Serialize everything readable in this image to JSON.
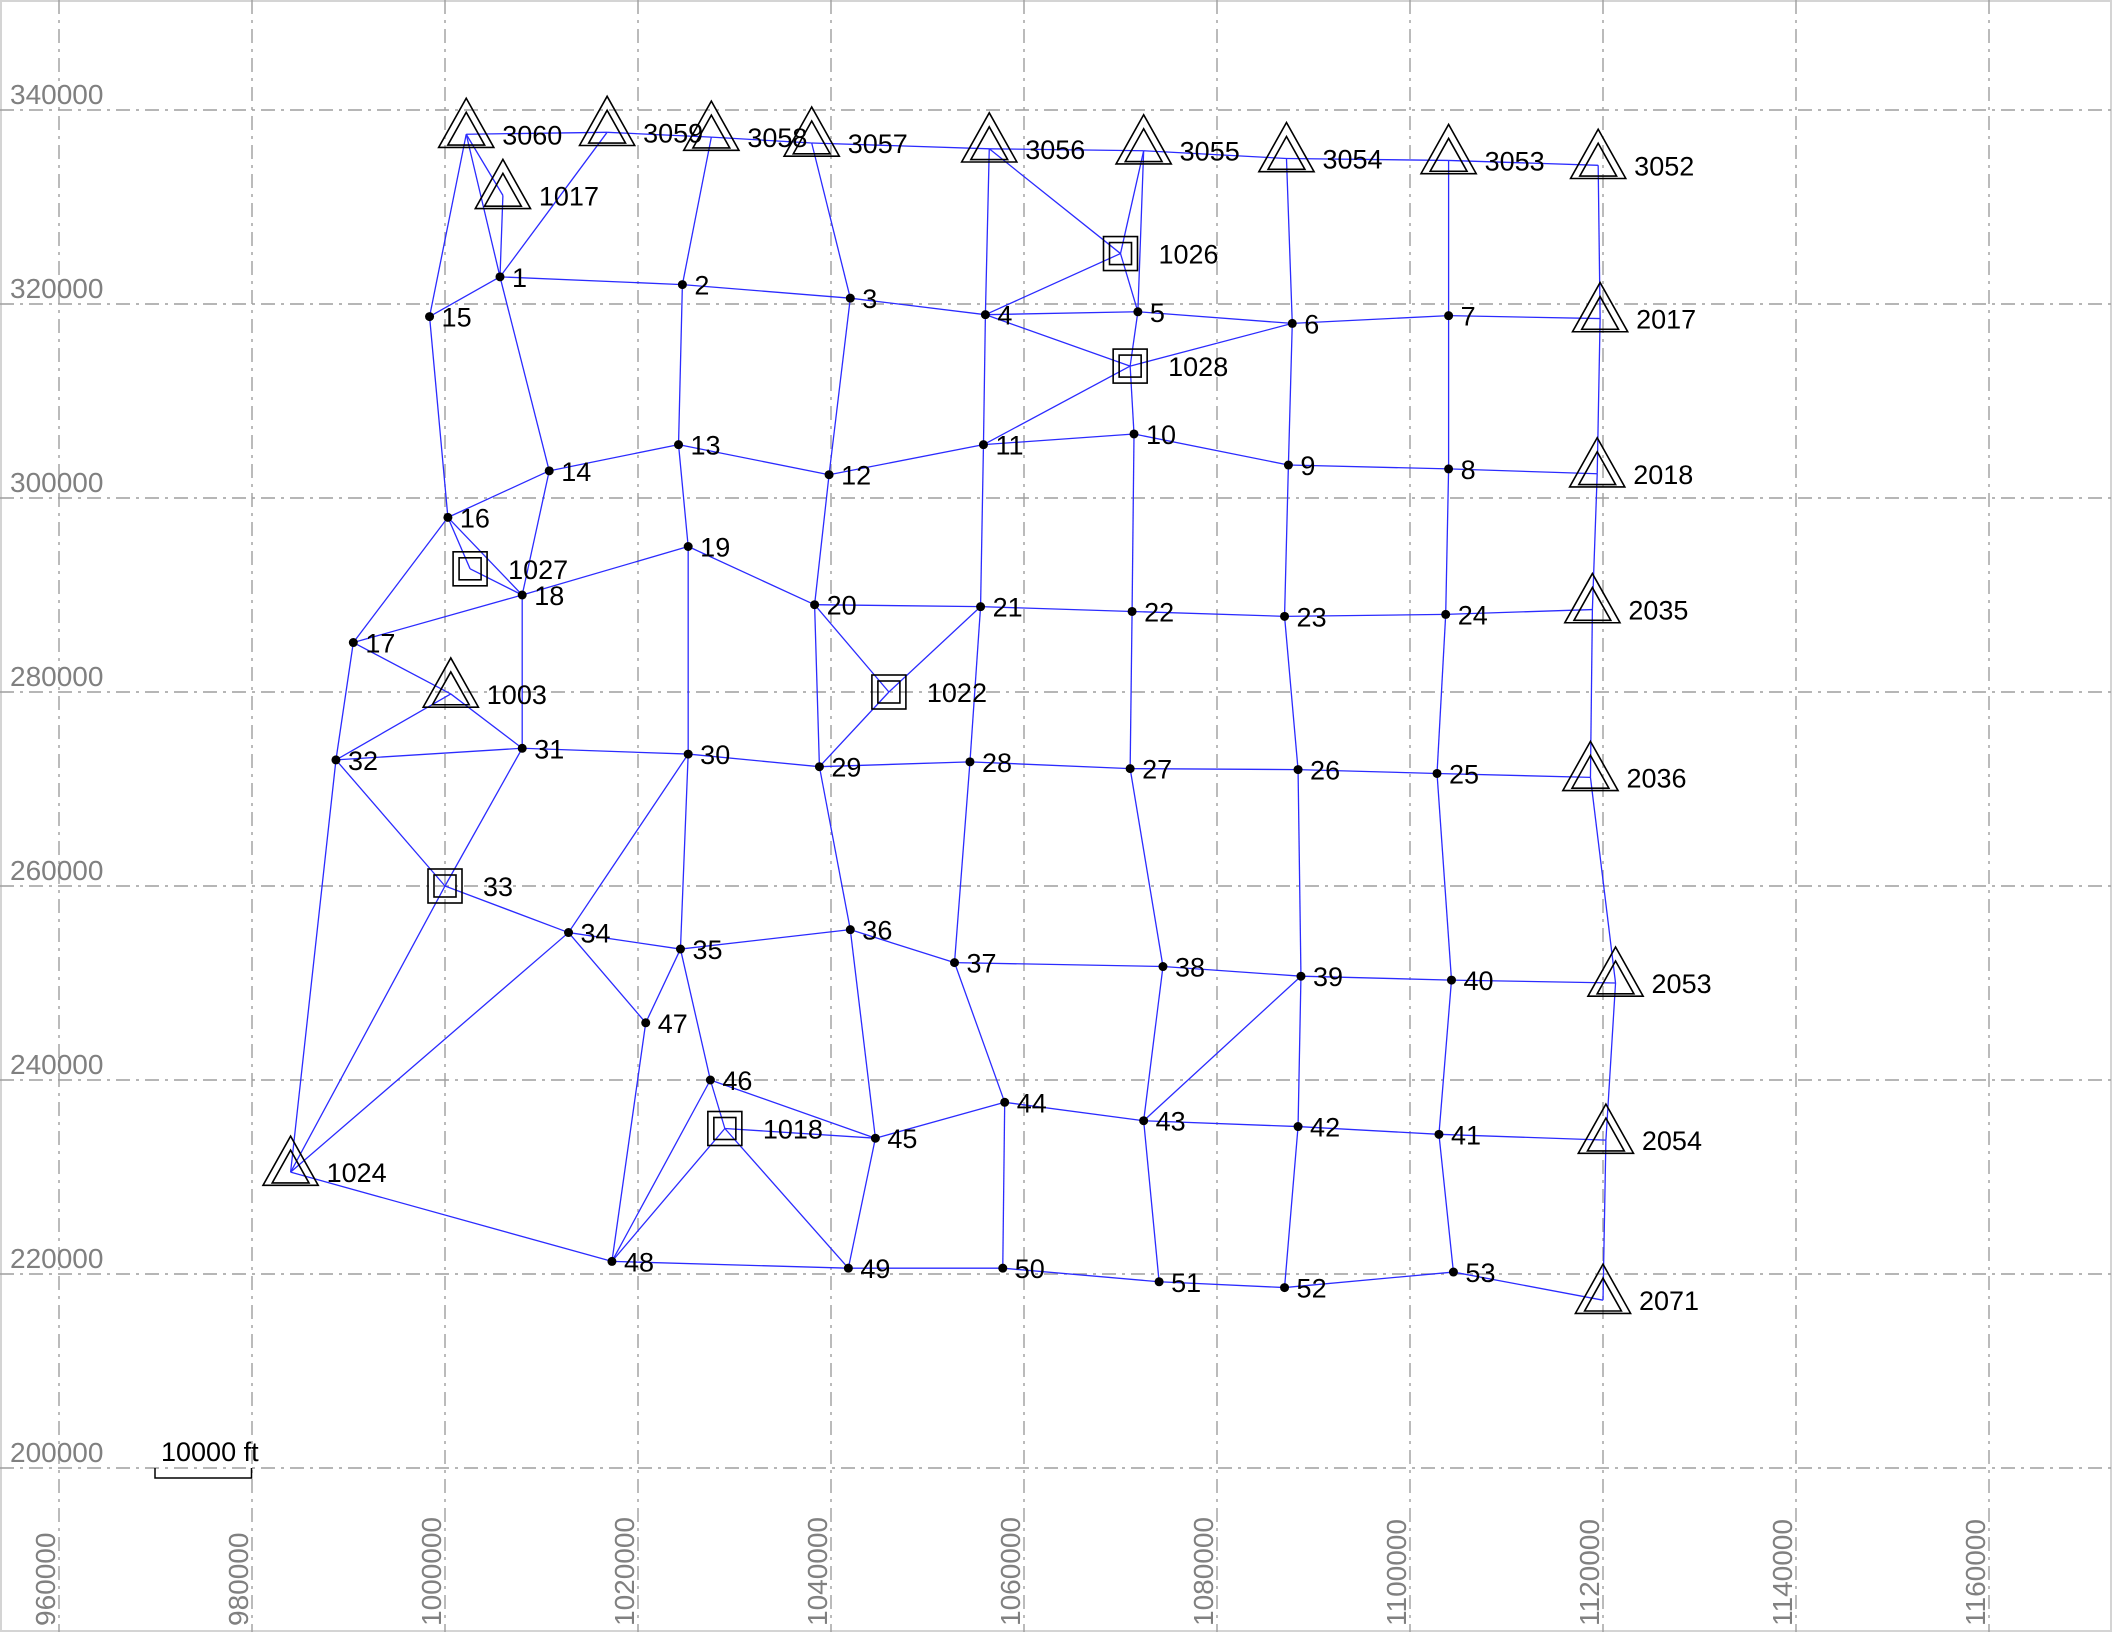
{
  "axes": {
    "x_ticks": [
      "960000",
      "980000",
      "1000000",
      "1020000",
      "1040000",
      "1060000",
      "1080000",
      "1100000",
      "1120000",
      "1140000",
      "1160000"
    ],
    "y_ticks": [
      "340000",
      "320000",
      "300000",
      "280000",
      "260000",
      "240000",
      "220000",
      "200000"
    ],
    "grid": true
  },
  "scale_bar": {
    "label": "10000 ft",
    "length_ft": 10000
  },
  "colors": {
    "edge": "#2b2bff",
    "grid": "#9e9e9e",
    "tick_label": "#808080",
    "node": "#000000"
  },
  "marker_types": {
    "control_triangle": "double-triangle-icon",
    "control_square": "double-square-icon",
    "station": "dot-icon"
  },
  "nodes": [
    {
      "id": "3060",
      "x": 1002200,
      "y": 337500,
      "type": "triangle"
    },
    {
      "id": "3059",
      "x": 1016800,
      "y": 337700,
      "type": "triangle"
    },
    {
      "id": "3058",
      "x": 1027600,
      "y": 337200,
      "type": "triangle"
    },
    {
      "id": "3057",
      "x": 1038000,
      "y": 336600,
      "type": "triangle"
    },
    {
      "id": "3056",
      "x": 1056400,
      "y": 336000,
      "type": "triangle"
    },
    {
      "id": "3055",
      "x": 1072400,
      "y": 335800,
      "type": "triangle"
    },
    {
      "id": "3054",
      "x": 1087200,
      "y": 335000,
      "type": "triangle"
    },
    {
      "id": "3053",
      "x": 1104000,
      "y": 334800,
      "type": "triangle"
    },
    {
      "id": "3052",
      "x": 1119500,
      "y": 334300,
      "type": "triangle"
    },
    {
      "id": "1017",
      "x": 1006000,
      "y": 331200,
      "type": "triangle"
    },
    {
      "id": "1026",
      "x": 1070000,
      "y": 325200,
      "type": "square"
    },
    {
      "id": "1",
      "x": 1005700,
      "y": 322800,
      "type": "dot"
    },
    {
      "id": "2",
      "x": 1024600,
      "y": 322000,
      "type": "dot"
    },
    {
      "id": "3",
      "x": 1042000,
      "y": 320600,
      "type": "dot"
    },
    {
      "id": "4",
      "x": 1056000,
      "y": 318900,
      "type": "dot"
    },
    {
      "id": "5",
      "x": 1071800,
      "y": 319200,
      "type": "dot"
    },
    {
      "id": "6",
      "x": 1087800,
      "y": 318000,
      "type": "dot"
    },
    {
      "id": "7",
      "x": 1104000,
      "y": 318800,
      "type": "dot"
    },
    {
      "id": "2017",
      "x": 1119700,
      "y": 318500,
      "type": "triangle"
    },
    {
      "id": "15",
      "x": 998400,
      "y": 318700,
      "type": "dot"
    },
    {
      "id": "1028",
      "x": 1071000,
      "y": 313600,
      "type": "square"
    },
    {
      "id": "13",
      "x": 1024200,
      "y": 305500,
      "type": "dot"
    },
    {
      "id": "11",
      "x": 1055800,
      "y": 305500,
      "type": "dot"
    },
    {
      "id": "10",
      "x": 1071400,
      "y": 306600,
      "type": "dot"
    },
    {
      "id": "14",
      "x": 1010800,
      "y": 302800,
      "type": "dot"
    },
    {
      "id": "12",
      "x": 1039800,
      "y": 302400,
      "type": "dot"
    },
    {
      "id": "9",
      "x": 1087400,
      "y": 303400,
      "type": "dot"
    },
    {
      "id": "8",
      "x": 1104000,
      "y": 303000,
      "type": "dot"
    },
    {
      "id": "2018",
      "x": 1119400,
      "y": 302500,
      "type": "triangle"
    },
    {
      "id": "16",
      "x": 1000300,
      "y": 298000,
      "type": "dot"
    },
    {
      "id": "19",
      "x": 1025200,
      "y": 295000,
      "type": "dot"
    },
    {
      "id": "1027",
      "x": 1002600,
      "y": 292700,
      "type": "square"
    },
    {
      "id": "18",
      "x": 1008000,
      "y": 290000,
      "type": "dot"
    },
    {
      "id": "20",
      "x": 1038300,
      "y": 289000,
      "type": "dot"
    },
    {
      "id": "21",
      "x": 1055500,
      "y": 288800,
      "type": "dot"
    },
    {
      "id": "22",
      "x": 1071200,
      "y": 288300,
      "type": "dot"
    },
    {
      "id": "23",
      "x": 1087000,
      "y": 287800,
      "type": "dot"
    },
    {
      "id": "24",
      "x": 1103700,
      "y": 288000,
      "type": "dot"
    },
    {
      "id": "2035",
      "x": 1118900,
      "y": 288500,
      "type": "triangle"
    },
    {
      "id": "17",
      "x": 990500,
      "y": 285100,
      "type": "dot"
    },
    {
      "id": "1003",
      "x": 1000600,
      "y": 279800,
      "type": "triangle"
    },
    {
      "id": "1022",
      "x": 1046000,
      "y": 280000,
      "type": "square"
    },
    {
      "id": "31",
      "x": 1008000,
      "y": 274200,
      "type": "dot"
    },
    {
      "id": "30",
      "x": 1025200,
      "y": 273600,
      "type": "dot"
    },
    {
      "id": "32",
      "x": 988700,
      "y": 273000,
      "type": "dot"
    },
    {
      "id": "28",
      "x": 1054400,
      "y": 272800,
      "type": "dot"
    },
    {
      "id": "29",
      "x": 1038800,
      "y": 272300,
      "type": "dot"
    },
    {
      "id": "27",
      "x": 1071000,
      "y": 272100,
      "type": "dot"
    },
    {
      "id": "26",
      "x": 1088400,
      "y": 272000,
      "type": "dot"
    },
    {
      "id": "25",
      "x": 1102800,
      "y": 271600,
      "type": "dot"
    },
    {
      "id": "2036",
      "x": 1118700,
      "y": 271200,
      "type": "triangle"
    },
    {
      "id": "33",
      "x": 1000000,
      "y": 260000,
      "type": "square"
    },
    {
      "id": "36",
      "x": 1042000,
      "y": 255500,
      "type": "dot"
    },
    {
      "id": "34",
      "x": 1012800,
      "y": 255200,
      "type": "dot"
    },
    {
      "id": "35",
      "x": 1024400,
      "y": 253500,
      "type": "dot"
    },
    {
      "id": "37",
      "x": 1052800,
      "y": 252100,
      "type": "dot"
    },
    {
      "id": "38",
      "x": 1074400,
      "y": 251700,
      "type": "dot"
    },
    {
      "id": "39",
      "x": 1088700,
      "y": 250700,
      "type": "dot"
    },
    {
      "id": "40",
      "x": 1104300,
      "y": 250300,
      "type": "dot"
    },
    {
      "id": "2053",
      "x": 1121300,
      "y": 250000,
      "type": "triangle"
    },
    {
      "id": "47",
      "x": 1020800,
      "y": 245900,
      "type": "dot"
    },
    {
      "id": "46",
      "x": 1027500,
      "y": 240000,
      "type": "dot"
    },
    {
      "id": "44",
      "x": 1058000,
      "y": 237700,
      "type": "dot"
    },
    {
      "id": "43",
      "x": 1072400,
      "y": 235800,
      "type": "dot"
    },
    {
      "id": "42",
      "x": 1088400,
      "y": 235200,
      "type": "dot"
    },
    {
      "id": "1018",
      "x": 1029000,
      "y": 235000,
      "type": "square"
    },
    {
      "id": "41",
      "x": 1103000,
      "y": 234400,
      "type": "dot"
    },
    {
      "id": "45",
      "x": 1044600,
      "y": 234000,
      "type": "dot"
    },
    {
      "id": "2054",
      "x": 1120300,
      "y": 233800,
      "type": "triangle"
    },
    {
      "id": "1024",
      "x": 984000,
      "y": 230500,
      "type": "triangle"
    },
    {
      "id": "48",
      "x": 1017300,
      "y": 221300,
      "type": "dot"
    },
    {
      "id": "49",
      "x": 1041800,
      "y": 220600,
      "type": "dot"
    },
    {
      "id": "50",
      "x": 1057800,
      "y": 220600,
      "type": "dot"
    },
    {
      "id": "53",
      "x": 1104500,
      "y": 220200,
      "type": "dot"
    },
    {
      "id": "51",
      "x": 1074000,
      "y": 219200,
      "type": "dot"
    },
    {
      "id": "52",
      "x": 1087000,
      "y": 218600,
      "type": "dot"
    },
    {
      "id": "2071",
      "x": 1120000,
      "y": 217300,
      "type": "triangle"
    }
  ],
  "edges": [
    [
      "3060",
      "3059"
    ],
    [
      "3059",
      "3058"
    ],
    [
      "3058",
      "3057"
    ],
    [
      "3057",
      "3056"
    ],
    [
      "3056",
      "3055"
    ],
    [
      "3055",
      "3054"
    ],
    [
      "3054",
      "3053"
    ],
    [
      "3053",
      "3052"
    ],
    [
      "3060",
      "1017"
    ],
    [
      "3060",
      "15"
    ],
    [
      "3060",
      "1"
    ],
    [
      "1017",
      "1"
    ],
    [
      "3059",
      "1"
    ],
    [
      "1",
      "15"
    ],
    [
      "1",
      "2"
    ],
    [
      "1",
      "14"
    ],
    [
      "3058",
      "2"
    ],
    [
      "3057",
      "3"
    ],
    [
      "2",
      "3"
    ],
    [
      "3",
      "4"
    ],
    [
      "3",
      "12"
    ],
    [
      "2",
      "13"
    ],
    [
      "3056",
      "4"
    ],
    [
      "3056",
      "1026"
    ],
    [
      "1026",
      "5"
    ],
    [
      "3055",
      "1026"
    ],
    [
      "3055",
      "5"
    ],
    [
      "1026",
      "4"
    ],
    [
      "4",
      "5"
    ],
    [
      "4",
      "1028"
    ],
    [
      "1028",
      "6"
    ],
    [
      "1028",
      "11"
    ],
    [
      "5",
      "1028"
    ],
    [
      "1028",
      "10"
    ],
    [
      "5",
      "6"
    ],
    [
      "6",
      "7"
    ],
    [
      "7",
      "2017"
    ],
    [
      "3054",
      "6"
    ],
    [
      "3053",
      "7"
    ],
    [
      "3052",
      "2017"
    ],
    [
      "6",
      "9"
    ],
    [
      "7",
      "8"
    ],
    [
      "2017",
      "2018"
    ],
    [
      "4",
      "11"
    ],
    [
      "15",
      "16"
    ],
    [
      "14",
      "13"
    ],
    [
      "13",
      "12"
    ],
    [
      "12",
      "11"
    ],
    [
      "11",
      "10"
    ],
    [
      "10",
      "9"
    ],
    [
      "9",
      "8"
    ],
    [
      "8",
      "2018"
    ],
    [
      "14",
      "16"
    ],
    [
      "14",
      "18"
    ],
    [
      "16",
      "17"
    ],
    [
      "16",
      "1027"
    ],
    [
      "1027",
      "18"
    ],
    [
      "16",
      "18"
    ],
    [
      "13",
      "19"
    ],
    [
      "12",
      "20"
    ],
    [
      "11",
      "21"
    ],
    [
      "10",
      "22"
    ],
    [
      "9",
      "23"
    ],
    [
      "8",
      "24"
    ],
    [
      "2018",
      "2035"
    ],
    [
      "17",
      "18"
    ],
    [
      "18",
      "19"
    ],
    [
      "19",
      "20"
    ],
    [
      "20",
      "21"
    ],
    [
      "21",
      "22"
    ],
    [
      "22",
      "23"
    ],
    [
      "23",
      "24"
    ],
    [
      "24",
      "2035"
    ],
    [
      "17",
      "1003"
    ],
    [
      "1003",
      "31"
    ],
    [
      "18",
      "31"
    ],
    [
      "17",
      "32"
    ],
    [
      "19",
      "30"
    ],
    [
      "20",
      "1022"
    ],
    [
      "1022",
      "21"
    ],
    [
      "1022",
      "29"
    ],
    [
      "20",
      "29"
    ],
    [
      "21",
      "28"
    ],
    [
      "22",
      "27"
    ],
    [
      "23",
      "26"
    ],
    [
      "24",
      "25"
    ],
    [
      "2035",
      "2036"
    ],
    [
      "32",
      "1003"
    ],
    [
      "32",
      "31"
    ],
    [
      "31",
      "30"
    ],
    [
      "30",
      "29"
    ],
    [
      "29",
      "28"
    ],
    [
      "28",
      "27"
    ],
    [
      "27",
      "26"
    ],
    [
      "26",
      "25"
    ],
    [
      "25",
      "2036"
    ],
    [
      "32",
      "33"
    ],
    [
      "33",
      "31"
    ],
    [
      "32",
      "1024"
    ],
    [
      "33",
      "34"
    ],
    [
      "33",
      "1024"
    ],
    [
      "30",
      "34"
    ],
    [
      "30",
      "35"
    ],
    [
      "29",
      "36"
    ],
    [
      "28",
      "37"
    ],
    [
      "27",
      "38"
    ],
    [
      "26",
      "39"
    ],
    [
      "25",
      "40"
    ],
    [
      "2036",
      "2053"
    ],
    [
      "34",
      "35"
    ],
    [
      "35",
      "36"
    ],
    [
      "36",
      "37"
    ],
    [
      "37",
      "38"
    ],
    [
      "38",
      "39"
    ],
    [
      "39",
      "40"
    ],
    [
      "40",
      "2053"
    ],
    [
      "34",
      "47"
    ],
    [
      "34",
      "1024"
    ],
    [
      "35",
      "47"
    ],
    [
      "35",
      "46"
    ],
    [
      "47",
      "48"
    ],
    [
      "36",
      "45"
    ],
    [
      "37",
      "44"
    ],
    [
      "38",
      "43"
    ],
    [
      "39",
      "43"
    ],
    [
      "39",
      "42"
    ],
    [
      "40",
      "41"
    ],
    [
      "2053",
      "2054"
    ],
    [
      "46",
      "1018"
    ],
    [
      "46",
      "45"
    ],
    [
      "46",
      "48"
    ],
    [
      "1018",
      "48"
    ],
    [
      "1018",
      "45"
    ],
    [
      "1018",
      "49"
    ],
    [
      "45",
      "44"
    ],
    [
      "44",
      "43"
    ],
    [
      "43",
      "42"
    ],
    [
      "42",
      "41"
    ],
    [
      "41",
      "2054"
    ],
    [
      "45",
      "49"
    ],
    [
      "44",
      "50"
    ],
    [
      "43",
      "51"
    ],
    [
      "42",
      "52"
    ],
    [
      "41",
      "53"
    ],
    [
      "2054",
      "2071"
    ],
    [
      "1024",
      "48"
    ],
    [
      "48",
      "49"
    ],
    [
      "49",
      "50"
    ],
    [
      "50",
      "51"
    ],
    [
      "51",
      "52"
    ],
    [
      "52",
      "53"
    ],
    [
      "53",
      "2071"
    ]
  ]
}
